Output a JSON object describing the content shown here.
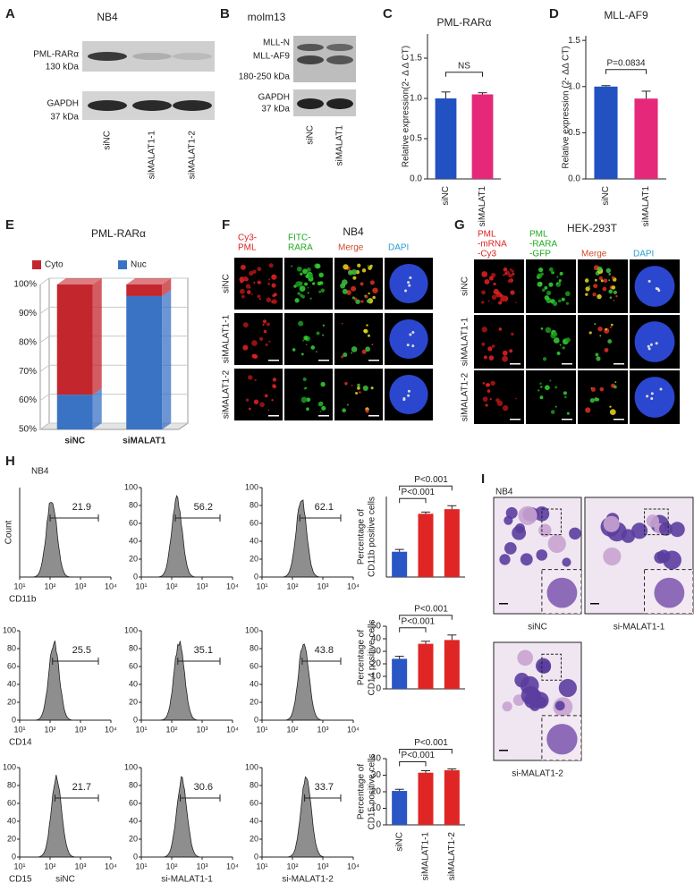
{
  "figure": {
    "panel_labels": [
      "A",
      "B",
      "C",
      "D",
      "E",
      "F",
      "G",
      "H",
      "I"
    ],
    "A": {
      "title": "NB4",
      "blot_labels": [
        "PML-RARα",
        "130 kDa",
        "GAPDH",
        "37 kDa"
      ],
      "lanes": [
        "siNC",
        "siMALAT1-1",
        "siMALAT1-2"
      ]
    },
    "B": {
      "title": "molm13",
      "blot_labels": [
        "MLL-N",
        "MLL-AF9",
        "180-250 kDa",
        "GAPDH",
        "37 kDa"
      ],
      "lanes": [
        "siNC",
        "siMALAT1"
      ]
    },
    "F": {
      "title": "NB4",
      "columns": [
        [
          "Cy3-",
          "PML"
        ],
        [
          "FITC-",
          "RARA"
        ],
        [
          "Merge"
        ],
        [
          "DAPI"
        ]
      ],
      "rows": [
        "siNC",
        "siMALAT1-1",
        "siMALAT1-2"
      ]
    },
    "G": {
      "title": "HEK-293T",
      "columns": [
        [
          "PML",
          "-mRNA",
          "-Cy3"
        ],
        [
          "PML",
          "-RARA",
          "-GFP"
        ],
        [
          "Merge"
        ],
        [
          "DAPI"
        ]
      ],
      "rows": [
        "siNC",
        "siMALAT1-1",
        "siMALAT1-2"
      ]
    },
    "H": {
      "cell_line": "NB4",
      "y_label": "Count",
      "ylim": [
        0,
        100
      ],
      "yticks": [
        0,
        20,
        40,
        60,
        80,
        100
      ],
      "xtick_labels": [
        "10¹",
        "10²",
        "10³",
        "10⁴"
      ],
      "markers": [
        "CD11b",
        "CD14",
        "CD15"
      ],
      "conditions": [
        "siNC",
        "si-MALAT1-1",
        "si-MALAT1-2"
      ],
      "gates": [
        [
          21.9,
          56.2,
          62.1
        ],
        [
          25.5,
          35.1,
          43.8
        ],
        [
          21.7,
          30.6,
          33.7
        ]
      ]
    },
    "I": {
      "cell_line": "NB4",
      "conditions": [
        "siNC",
        "si-MALAT1-1",
        "si-MALAT1-2"
      ]
    }
  },
  "chart_data": [
    {
      "type": "bar",
      "title": "PML-RARα",
      "ylabel": "Relative expression(2- Δ Δ CT)",
      "categories": [
        "siNC",
        "siMALAT1"
      ],
      "values": [
        1.0,
        1.05
      ],
      "errors": [
        0.08,
        0.02
      ],
      "colors": [
        "#2251c1",
        "#e6287a"
      ],
      "ylim": [
        0,
        1.8
      ],
      "yticks": [
        {
          "value": 0,
          "label": "0.0"
        },
        {
          "value": 0.5,
          "label": "0.5"
        },
        {
          "value": 1,
          "label": "1.0"
        },
        {
          "value": 1.5,
          "label": "1.5"
        }
      ],
      "annotations": [
        "NS"
      ]
    },
    {
      "type": "bar",
      "title": "MLL-AF9",
      "ylabel": "Relative expression (2- ΔΔ CT)",
      "categories": [
        "siNC",
        "siMALAT1"
      ],
      "values": [
        1.0,
        0.87
      ],
      "errors": [
        0.01,
        0.08
      ],
      "colors": [
        "#2251c1",
        "#e6287a"
      ],
      "ylim": [
        0,
        1.55
      ],
      "yticks": [
        {
          "value": 0,
          "label": "0.0"
        },
        {
          "value": 0.5,
          "label": "0.5"
        },
        {
          "value": 1,
          "label": "1.0"
        },
        {
          "value": 1.5,
          "label": "1.5"
        }
      ],
      "annotations": [
        "P=0.0834"
      ]
    },
    {
      "type": "stacked_bar_3d",
      "title": "PML-RARα",
      "categories": [
        "siNC",
        "siMALAT1"
      ],
      "series": [
        {
          "name": "Cyto",
          "color": "#c4262e",
          "values": [
            38,
            4
          ]
        },
        {
          "name": "Nuc",
          "color": "#3a72c4",
          "values": [
            62,
            96
          ]
        }
      ],
      "ylim": [
        50,
        100
      ],
      "grid": true,
      "yticks": [
        {
          "value": 50,
          "label": "50%"
        },
        {
          "value": 60,
          "label": "60%"
        },
        {
          "value": 70,
          "label": "70%"
        },
        {
          "value": 80,
          "label": "80%"
        },
        {
          "value": 90,
          "label": "90%"
        },
        {
          "value": 100,
          "label": "100%"
        }
      ]
    },
    {
      "type": "bar",
      "ylabel": [
        "Percentage of",
        "CD11b positive cells"
      ],
      "categories": [
        null,
        null,
        null
      ],
      "values": [
        22,
        55,
        59
      ],
      "errors": [
        2,
        1.5,
        3
      ],
      "colors": [
        "#2a55c5",
        "#e02525",
        "#e02525"
      ],
      "ylim": [
        0,
        70
      ],
      "annotations": [
        "P<0.001",
        "P<0.001"
      ]
    },
    {
      "type": "bar",
      "ylabel": [
        "Percentage of",
        "CD14 positive cells"
      ],
      "categories": [
        null,
        null,
        null
      ],
      "values": [
        24,
        36,
        39
      ],
      "errors": [
        2,
        2,
        4
      ],
      "colors": [
        "#2a55c5",
        "#e02525",
        "#e02525"
      ],
      "ylim": [
        0,
        50
      ],
      "yticks": [
        0,
        10,
        20,
        30,
        40,
        50
      ],
      "annotations": [
        "P<0.001",
        "P<0.001"
      ]
    },
    {
      "type": "bar",
      "ylabel": [
        "Percentage of",
        "CD15 positive cells"
      ],
      "categories": [
        "siNC",
        "siMALAT1-1",
        "siMALAT1-2"
      ],
      "values": [
        20.5,
        31.5,
        33
      ],
      "errors": [
        1,
        1.2,
        0.8
      ],
      "colors": [
        "#2a55c5",
        "#e02525",
        "#e02525"
      ],
      "ylim": [
        0,
        40
      ],
      "yticks": [
        0,
        10,
        20,
        30,
        40
      ],
      "annotations": [
        "P<0.001",
        "P<0.001"
      ]
    }
  ]
}
